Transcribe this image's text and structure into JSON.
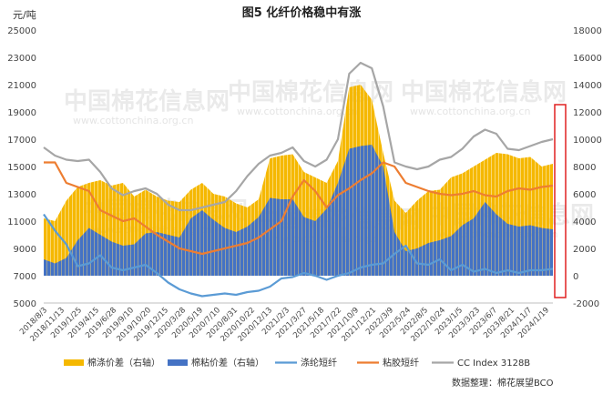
{
  "chart_data": {
    "type": "bar+line",
    "title": "图5  化纤价格稳中有涨",
    "left_unit": "元/吨",
    "y_left": {
      "min": 5000,
      "max": 25000,
      "ticks": [
        "5000",
        "7000",
        "9000",
        "11000",
        "13000",
        "15000",
        "17000",
        "19000",
        "21000",
        "23000",
        "25000"
      ]
    },
    "y_right": {
      "min": -2000,
      "max": 18000,
      "ticks": [
        "-2000",
        "0",
        "2000",
        "4000",
        "6000",
        "8000",
        "10000",
        "12000",
        "14000",
        "16000",
        "18000"
      ]
    },
    "x_ticks": [
      "2018/8/3",
      "2018/11/13",
      "2019/1/25",
      "2019/4/15",
      "2019/6/28",
      "2019/9/10",
      "2019/10/20",
      "2019/12/15",
      "2020/3/28",
      "2020/5/19",
      "2020/7/10",
      "2020/8/31",
      "2020/10/22",
      "2020/12/13",
      "2021/2/3",
      "2021/3/27",
      "2021/5/18",
      "2021/7/22",
      "2021/10/9",
      "2021/12/21",
      "2022/3/9",
      "2022/5/24",
      "2022/8/5",
      "2022/10/24",
      "2023/1/5",
      "2023/3/23",
      "2023/6/7",
      "2023/8/21",
      "2024/11/7",
      "2024/1/19"
    ],
    "series": [
      {
        "name": "棉涤价差（右轴）",
        "kind": "area",
        "axis": "right",
        "color": "#f5b800",
        "values": [
          4200,
          4000,
          5500,
          6500,
          6800,
          7000,
          6600,
          6800,
          5800,
          6300,
          5800,
          5500,
          5400,
          6300,
          6800,
          6000,
          5800,
          5300,
          5000,
          5600,
          8600,
          8800,
          8900,
          7600,
          7200,
          6800,
          8400,
          13800,
          14000,
          12900,
          9000,
          5500,
          4600,
          5500,
          6200,
          6300,
          7200,
          7500,
          8000,
          8500,
          9000,
          8900,
          8600,
          8700,
          8000,
          8200
        ]
      },
      {
        "name": "棉粘价差（右轴）",
        "kind": "area",
        "axis": "right",
        "color": "#4472c4",
        "values": [
          1200,
          900,
          1300,
          2600,
          3500,
          3000,
          2500,
          2200,
          2300,
          3100,
          3200,
          3000,
          2800,
          4200,
          4800,
          4100,
          3500,
          3200,
          3600,
          4300,
          5700,
          5600,
          5600,
          4300,
          4000,
          4900,
          6800,
          9300,
          9500,
          9600,
          8000,
          3200,
          1800,
          2000,
          2400,
          2600,
          2900,
          3700,
          4200,
          5400,
          4500,
          3800,
          3600,
          3700,
          3500,
          3400
        ]
      },
      {
        "name": "涤纶短纤",
        "kind": "line",
        "axis": "left",
        "color": "#5b9bd5",
        "values": [
          11500,
          10300,
          9300,
          7700,
          7900,
          8500,
          7600,
          7400,
          7600,
          7800,
          7200,
          6500,
          6000,
          5700,
          5500,
          5600,
          5700,
          5600,
          5800,
          5900,
          6200,
          6800,
          6900,
          7200,
          7000,
          6700,
          7000,
          7200,
          7600,
          7800,
          7900,
          8600,
          9200,
          7900,
          7800,
          8200,
          7400,
          7800,
          7300,
          7500,
          7200,
          7400,
          7200,
          7400,
          7400,
          7500
        ]
      },
      {
        "name": "粘胶短纤",
        "kind": "line",
        "axis": "left",
        "color": "#ed7d31",
        "values": [
          15300,
          15300,
          13800,
          13500,
          13200,
          11800,
          11400,
          11000,
          11200,
          10600,
          10000,
          9500,
          9000,
          8800,
          8600,
          8800,
          9000,
          9200,
          9400,
          9800,
          10400,
          11000,
          12800,
          14000,
          13200,
          12000,
          12900,
          13400,
          14000,
          14500,
          15300,
          15000,
          13800,
          13500,
          13200,
          13000,
          12900,
          13000,
          13200,
          12900,
          12800,
          13200,
          13400,
          13300,
          13500,
          13600
        ]
      },
      {
        "name": "CC Index 3128B",
        "kind": "line",
        "axis": "left",
        "color": "#a6a6a6",
        "values": [
          16400,
          15800,
          15500,
          15400,
          15500,
          14600,
          13400,
          12900,
          13200,
          13400,
          13000,
          12200,
          11800,
          11800,
          12000,
          12200,
          12400,
          13200,
          14300,
          15200,
          15800,
          16000,
          16400,
          15400,
          15000,
          15500,
          17000,
          21800,
          22600,
          22200,
          19400,
          15300,
          15000,
          14800,
          15000,
          15500,
          15700,
          16300,
          17200,
          17700,
          17400,
          16300,
          16200,
          16500,
          16800,
          17000
        ]
      }
    ],
    "legend_position": "bottom",
    "source": "数据整理：棉花展望BCO",
    "watermark": "中国棉花信息网",
    "watermark_url": "www.cottonchina.org.cn",
    "highlight_color": "#e02020",
    "grid": false
  }
}
